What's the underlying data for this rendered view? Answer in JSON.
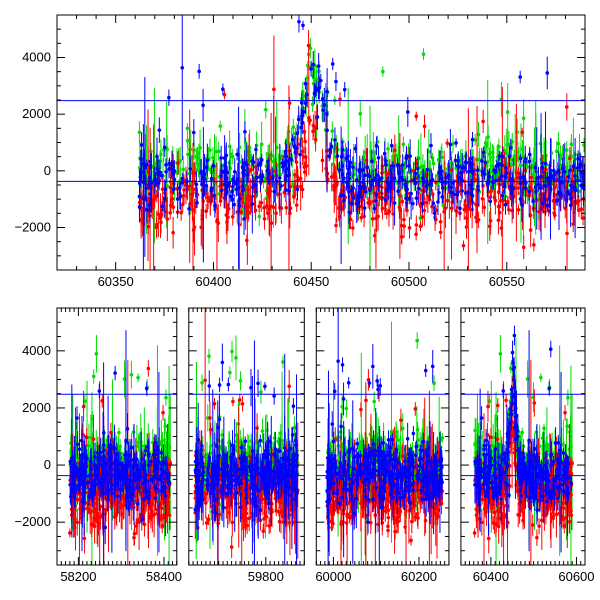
{
  "chart_data": [
    {
      "type": "scatter",
      "title": "",
      "xlabel": "",
      "ylabel": "",
      "xlim": [
        60320,
        60590
      ],
      "ylim": [
        -3500,
        5500
      ],
      "grid": false,
      "colors": {
        "green": "#00dd00",
        "red": "#ff0000",
        "blue": "#0000ff"
      },
      "x_ticks": [
        60350,
        60400,
        60450,
        60500,
        60550
      ],
      "y_ticks": [
        -2000,
        0,
        2000,
        4000
      ],
      "reference_lines": [
        2480,
        -370
      ],
      "data_x_range": [
        60362,
        60590
      ],
      "series_levels": {
        "green": 0,
        "red": -1000,
        "blue": -300
      },
      "flare": {
        "center": 60451,
        "peak": 3300
      }
    },
    {
      "type": "scatter",
      "title": "",
      "xlabel": "",
      "ylabel": "",
      "ylim": [
        -3500,
        5500
      ],
      "grid": false,
      "broken_axis": true,
      "colors": {
        "green": "#00dd00",
        "red": "#ff0000",
        "blue": "#0000ff"
      },
      "segments": [
        {
          "xlim": [
            58150,
            58430
          ],
          "data_x_range": [
            58180,
            58415
          ],
          "ticks": [
            58200,
            58400
          ]
        },
        {
          "xlim": [
            59620,
            59890
          ],
          "data_x_range": [
            59635,
            59875
          ],
          "ticks": [
            59800
          ]
        },
        {
          "xlim": [
            59960,
            60270
          ],
          "data_x_range": [
            59985,
            60255
          ],
          "ticks": [
            60000,
            60200
          ]
        },
        {
          "xlim": [
            60330,
            60620
          ],
          "data_x_range": [
            60362,
            60590
          ],
          "ticks": [
            60400,
            60600
          ]
        }
      ],
      "y_ticks": [
        -2000,
        0,
        2000,
        4000
      ],
      "reference_lines": [
        2480,
        -370
      ],
      "series_levels": {
        "green": 0,
        "red": -1000,
        "blue": -300
      },
      "flare": {
        "center": 60451,
        "peak": 3300
      }
    }
  ]
}
